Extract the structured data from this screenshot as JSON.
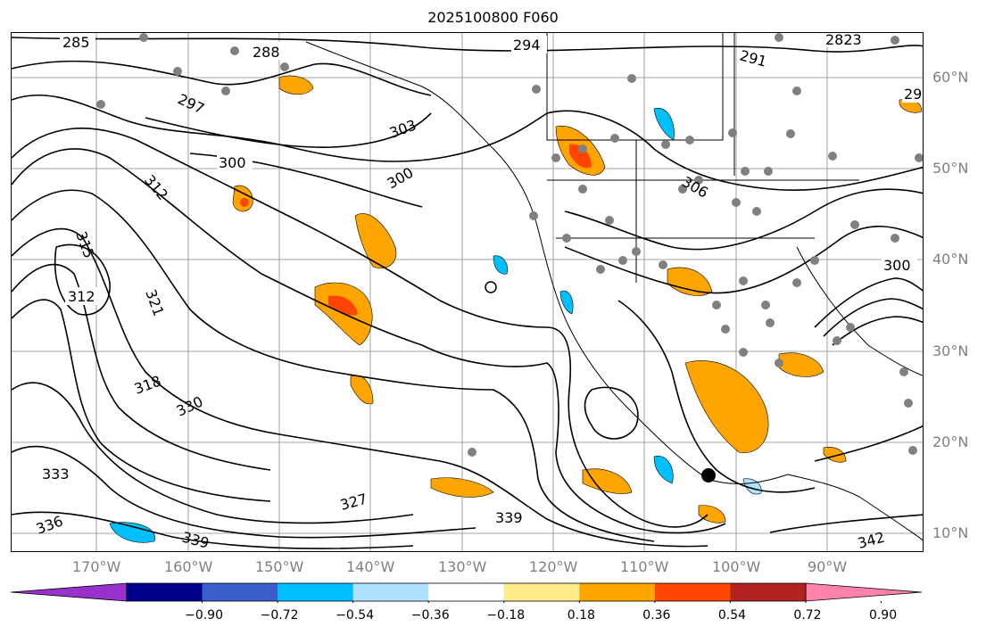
{
  "title": "2025100800 F060",
  "lat_labels": [
    "60°N",
    "50°N",
    "40°N",
    "30°N",
    "20°N",
    "10°N"
  ],
  "lon_labels": [
    "170°W",
    "160°W",
    "150°W",
    "140°W",
    "130°W",
    "120°W",
    "110°W",
    "100°W",
    "90°W"
  ],
  "contour_labels": [
    "285",
    "288",
    "294",
    "291",
    "2823",
    "297",
    "300",
    "303",
    "300",
    "306",
    "312",
    "315",
    "312",
    "321",
    "318",
    "330",
    "333",
    "336",
    "327",
    "339",
    "342",
    "339",
    "300",
    "29"
  ],
  "colorbar": {
    "ticks": [
      "−0.90",
      "−0.72",
      "−0.54",
      "−0.36",
      "−0.18",
      "0.18",
      "0.36",
      "0.54",
      "0.72",
      "0.90"
    ],
    "colors": [
      "#9932cc",
      "#00008b",
      "#3a5fcd",
      "#00bfff",
      "#b0e2ff",
      "#ffffff",
      "#ffec8b",
      "#ffa500",
      "#ff4500",
      "#b22222",
      "#ff82ab"
    ]
  },
  "colors": {
    "contour": "#000000",
    "coast": "#000000",
    "grid": "#888888",
    "axis_label": "#808080",
    "station": "#808080"
  }
}
